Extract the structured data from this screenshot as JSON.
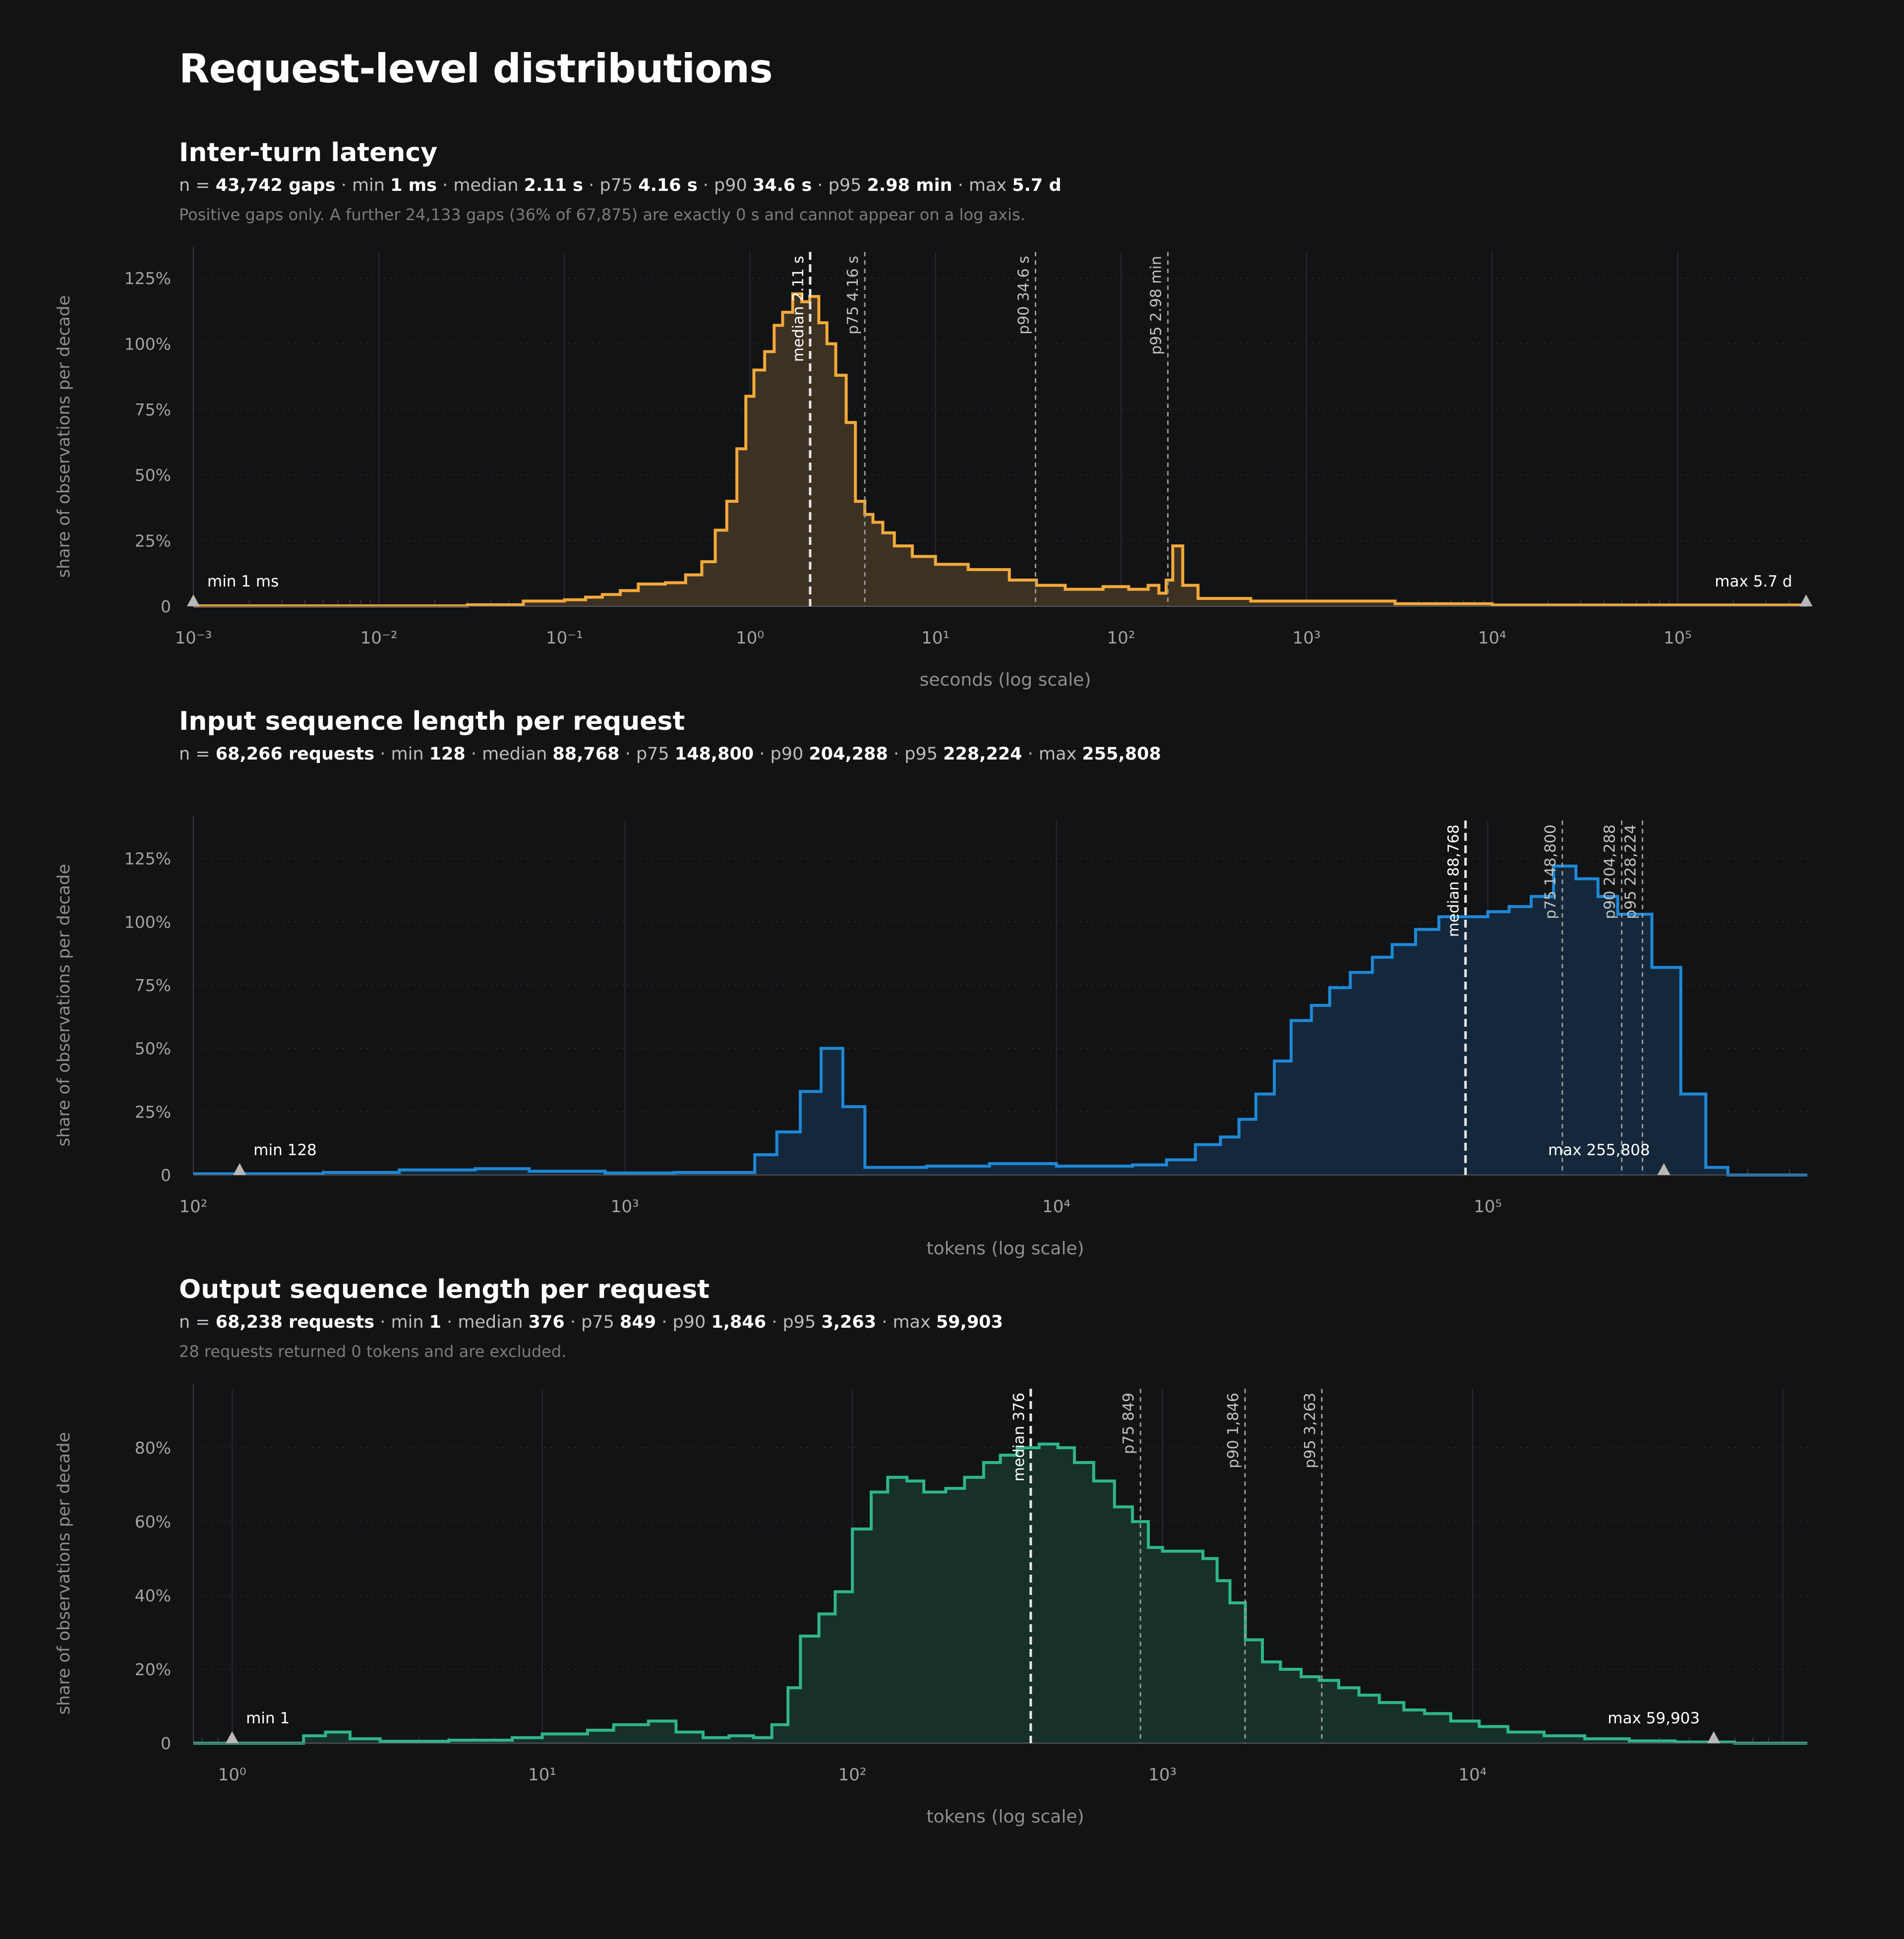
{
  "page": {
    "title": "Request-level distributions"
  },
  "chart_data": [
    {
      "type": "area",
      "title": "Inter-turn latency",
      "stats": [
        {
          "prefix": "n = ",
          "value": "43,742 gaps"
        },
        {
          "prefix": " · min ",
          "value": "1 ms"
        },
        {
          "prefix": " · median ",
          "value": "2.11 s"
        },
        {
          "prefix": " · p75 ",
          "value": "4.16 s"
        },
        {
          "prefix": " · p90 ",
          "value": "34.6 s"
        },
        {
          "prefix": " · p95 ",
          "value": "2.98 min"
        },
        {
          "prefix": " · max ",
          "value": "5.7 d"
        }
      ],
      "note": "Positive gaps only. A further 24,133 gaps (36% of 67,875) are exactly 0 s and cannot appear on a log axis.",
      "xlabel": "seconds (log scale)",
      "ylabel": "share of observations per decade",
      "x_scale": "log",
      "xlim": [
        0.001,
        500000
      ],
      "x_ticks": [
        0.001,
        0.01,
        0.1,
        1,
        10,
        100,
        1000,
        10000,
        100000
      ],
      "ylim": [
        0,
        1.35
      ],
      "y_ticks": [
        0,
        0.25,
        0.5,
        0.75,
        1.0,
        1.25
      ],
      "y_tick_labels": [
        "0",
        "25%",
        "50%",
        "75%",
        "100%",
        "125%"
      ],
      "color": "#f2a93b",
      "fill": "#3d3122",
      "step_points": [
        [
          0.001,
          0.002
        ],
        [
          0.01,
          0.002
        ],
        [
          0.03,
          0.006
        ],
        [
          0.06,
          0.02
        ],
        [
          0.1,
          0.025
        ],
        [
          0.13,
          0.035
        ],
        [
          0.16,
          0.045
        ],
        [
          0.2,
          0.06
        ],
        [
          0.25,
          0.085
        ],
        [
          0.35,
          0.09
        ],
        [
          0.45,
          0.12
        ],
        [
          0.55,
          0.17
        ],
        [
          0.65,
          0.29
        ],
        [
          0.75,
          0.4
        ],
        [
          0.85,
          0.6
        ],
        [
          0.95,
          0.8
        ],
        [
          1.05,
          0.9
        ],
        [
          1.2,
          0.97
        ],
        [
          1.35,
          1.07
        ],
        [
          1.5,
          1.12
        ],
        [
          1.7,
          1.19
        ],
        [
          1.9,
          1.16
        ],
        [
          2.1,
          1.18
        ],
        [
          2.35,
          1.08
        ],
        [
          2.6,
          1.0
        ],
        [
          2.9,
          0.88
        ],
        [
          3.3,
          0.7
        ],
        [
          3.7,
          0.4
        ],
        [
          4.16,
          0.35
        ],
        [
          4.6,
          0.32
        ],
        [
          5.2,
          0.28
        ],
        [
          6.0,
          0.23
        ],
        [
          7.5,
          0.19
        ],
        [
          10,
          0.16
        ],
        [
          15,
          0.14
        ],
        [
          25,
          0.1
        ],
        [
          35,
          0.08
        ],
        [
          50,
          0.065
        ],
        [
          80,
          0.075
        ],
        [
          110,
          0.065
        ],
        [
          140,
          0.08
        ],
        [
          160,
          0.05
        ],
        [
          175,
          0.1
        ],
        [
          190,
          0.23
        ],
        [
          215,
          0.08
        ],
        [
          260,
          0.03
        ],
        [
          500,
          0.02
        ],
        [
          1000,
          0.02
        ],
        [
          3000,
          0.01
        ],
        [
          10000,
          0.005
        ],
        [
          100000,
          0.005
        ],
        [
          500000,
          0.005
        ]
      ],
      "markers": [
        {
          "label": "median 2.11 s",
          "x": 2.11,
          "major": true
        },
        {
          "label": "p75 4.16 s",
          "x": 4.16,
          "major": false
        },
        {
          "label": "p90 34.6 s",
          "x": 34.6,
          "major": false
        },
        {
          "label": "p95 2.98 min",
          "x": 178.8,
          "major": false
        }
      ],
      "min_marker": {
        "label": "min 1 ms",
        "x": 0.001
      },
      "max_marker": {
        "label": "max 5.7 d",
        "x": 492480
      }
    },
    {
      "type": "area",
      "title": "Input sequence length per request",
      "stats": [
        {
          "prefix": "n = ",
          "value": "68,266 requests"
        },
        {
          "prefix": " · min ",
          "value": "128"
        },
        {
          "prefix": " · median ",
          "value": "88,768"
        },
        {
          "prefix": " · p75 ",
          "value": "148,800"
        },
        {
          "prefix": " · p90 ",
          "value": "204,288"
        },
        {
          "prefix": " · p95 ",
          "value": "228,224"
        },
        {
          "prefix": " · max ",
          "value": "255,808"
        }
      ],
      "note": "",
      "xlabel": "tokens (log scale)",
      "ylabel": "share of observations per decade",
      "x_scale": "log",
      "xlim": [
        100,
        550000
      ],
      "x_ticks": [
        100,
        1000,
        10000,
        100000
      ],
      "ylim": [
        0,
        1.4
      ],
      "y_ticks": [
        0,
        0.25,
        0.5,
        0.75,
        1.0,
        1.25
      ],
      "y_tick_labels": [
        "0",
        "25%",
        "50%",
        "75%",
        "100%",
        "125%"
      ],
      "color": "#1e88d6",
      "fill": "#15283b",
      "step_points": [
        [
          100,
          0.005
        ],
        [
          200,
          0.01
        ],
        [
          300,
          0.02
        ],
        [
          450,
          0.025
        ],
        [
          600,
          0.015
        ],
        [
          900,
          0.008
        ],
        [
          1300,
          0.01
        ],
        [
          2000,
          0.08
        ],
        [
          2250,
          0.17
        ],
        [
          2550,
          0.33
        ],
        [
          2850,
          0.5
        ],
        [
          3200,
          0.27
        ],
        [
          3600,
          0.03
        ],
        [
          5000,
          0.035
        ],
        [
          7000,
          0.045
        ],
        [
          10000,
          0.035
        ],
        [
          15000,
          0.04
        ],
        [
          18000,
          0.06
        ],
        [
          21000,
          0.12
        ],
        [
          24000,
          0.15
        ],
        [
          26500,
          0.22
        ],
        [
          29000,
          0.32
        ],
        [
          32000,
          0.45
        ],
        [
          35000,
          0.61
        ],
        [
          39000,
          0.67
        ],
        [
          43000,
          0.74
        ],
        [
          48000,
          0.8
        ],
        [
          54000,
          0.86
        ],
        [
          60000,
          0.91
        ],
        [
          68000,
          0.97
        ],
        [
          77000,
          1.02
        ],
        [
          88768,
          1.02
        ],
        [
          100000,
          1.04
        ],
        [
          112000,
          1.06
        ],
        [
          126000,
          1.1
        ],
        [
          142000,
          1.22
        ],
        [
          160000,
          1.17
        ],
        [
          180000,
          1.1
        ],
        [
          200000,
          1.03
        ],
        [
          240000,
          0.82
        ],
        [
          280000,
          0.32
        ],
        [
          320000,
          0.03
        ],
        [
          360000,
          0.0
        ],
        [
          550000,
          0.0
        ]
      ],
      "markers": [
        {
          "label": "median 88,768",
          "x": 88768,
          "major": true
        },
        {
          "label": "p75 148,800",
          "x": 148800,
          "major": false
        },
        {
          "label": "p90 204,288",
          "x": 204288,
          "major": false
        },
        {
          "label": "p95 228,224",
          "x": 228224,
          "major": false
        }
      ],
      "min_marker": {
        "label": "min 128",
        "x": 128
      },
      "max_marker": {
        "label": "max 255,808",
        "x": 255808
      }
    },
    {
      "type": "area",
      "title": "Output sequence length per request",
      "stats": [
        {
          "prefix": "n = ",
          "value": "68,238 requests"
        },
        {
          "prefix": " · min ",
          "value": "1"
        },
        {
          "prefix": " · median ",
          "value": "376"
        },
        {
          "prefix": " · p75 ",
          "value": "849"
        },
        {
          "prefix": " · p90 ",
          "value": "1,846"
        },
        {
          "prefix": " · p95 ",
          "value": "3,263"
        },
        {
          "prefix": " · max ",
          "value": "59,903"
        }
      ],
      "note": "28 requests returned 0 tokens and are excluded.",
      "xlabel": "tokens (log scale)",
      "ylabel": "share of observations per decade",
      "x_scale": "log",
      "xlim": [
        0.75,
        120000
      ],
      "x_ticks": [
        1,
        10,
        100,
        1000,
        10000
      ],
      "ylim": [
        0,
        0.96
      ],
      "y_ticks": [
        0,
        0.2,
        0.4,
        0.6,
        0.8
      ],
      "y_tick_labels": [
        "0",
        "20%",
        "40%",
        "60%",
        "80%"
      ],
      "color": "#2fb58a",
      "fill": "#17302a",
      "step_points": [
        [
          0.75,
          0.0
        ],
        [
          1.7,
          0.02
        ],
        [
          2.0,
          0.03
        ],
        [
          2.4,
          0.012
        ],
        [
          3.0,
          0.005
        ],
        [
          5.0,
          0.008
        ],
        [
          8.0,
          0.015
        ],
        [
          10,
          0.025
        ],
        [
          14,
          0.035
        ],
        [
          17,
          0.05
        ],
        [
          22,
          0.06
        ],
        [
          27,
          0.03
        ],
        [
          33,
          0.015
        ],
        [
          40,
          0.02
        ],
        [
          48,
          0.015
        ],
        [
          55,
          0.05
        ],
        [
          62,
          0.15
        ],
        [
          68,
          0.29
        ],
        [
          78,
          0.35
        ],
        [
          88,
          0.41
        ],
        [
          100,
          0.58
        ],
        [
          115,
          0.68
        ],
        [
          130,
          0.72
        ],
        [
          150,
          0.71
        ],
        [
          170,
          0.68
        ],
        [
          200,
          0.69
        ],
        [
          230,
          0.72
        ],
        [
          265,
          0.76
        ],
        [
          300,
          0.78
        ],
        [
          340,
          0.8
        ],
        [
          400,
          0.81
        ],
        [
          460,
          0.8
        ],
        [
          520,
          0.76
        ],
        [
          600,
          0.71
        ],
        [
          700,
          0.64
        ],
        [
          800,
          0.6
        ],
        [
          900,
          0.53
        ],
        [
          1000,
          0.52
        ],
        [
          1200,
          0.52
        ],
        [
          1350,
          0.5
        ],
        [
          1500,
          0.44
        ],
        [
          1650,
          0.38
        ],
        [
          1850,
          0.28
        ],
        [
          2100,
          0.22
        ],
        [
          2400,
          0.2
        ],
        [
          2800,
          0.18
        ],
        [
          3200,
          0.17
        ],
        [
          3700,
          0.15
        ],
        [
          4300,
          0.13
        ],
        [
          5000,
          0.11
        ],
        [
          6000,
          0.09
        ],
        [
          7000,
          0.08
        ],
        [
          8500,
          0.06
        ],
        [
          10500,
          0.045
        ],
        [
          13000,
          0.03
        ],
        [
          17000,
          0.02
        ],
        [
          23000,
          0.012
        ],
        [
          32000,
          0.006
        ],
        [
          45000,
          0.003
        ],
        [
          70000,
          0.0
        ],
        [
          120000,
          0.0
        ]
      ],
      "markers": [
        {
          "label": "median 376",
          "x": 376,
          "major": true
        },
        {
          "label": "p75 849",
          "x": 849,
          "major": false
        },
        {
          "label": "p90 1,846",
          "x": 1846,
          "major": false
        },
        {
          "label": "p95 3,263",
          "x": 3263,
          "major": false
        }
      ],
      "min_marker": {
        "label": "min 1",
        "x": 1
      },
      "max_marker": {
        "label": "max 59,903",
        "x": 59903
      }
    }
  ]
}
